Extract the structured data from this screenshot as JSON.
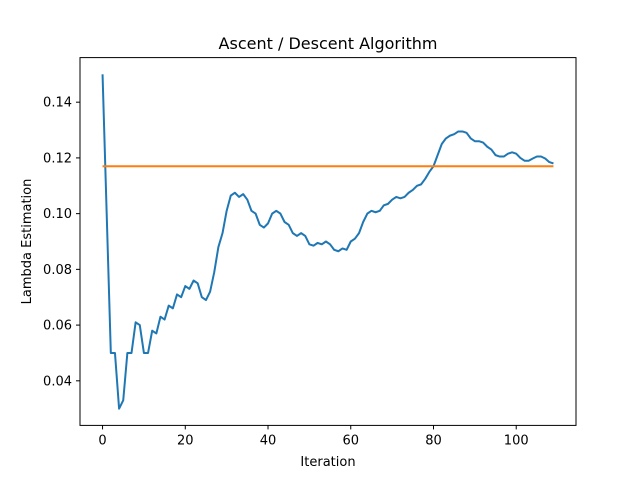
{
  "chart_data": {
    "type": "line",
    "title": "Ascent / Descent Algorithm",
    "xlabel": "Iteration",
    "ylabel": "Lambda Estimation",
    "xlim": [
      -5.45,
      114.45
    ],
    "ylim": [
      0.024,
      0.156
    ],
    "xticks": [
      0,
      20,
      40,
      60,
      80,
      100
    ],
    "yticks": [
      0.04,
      0.06,
      0.08,
      0.1,
      0.12,
      0.14
    ],
    "ytick_labels": [
      "0.04",
      "0.06",
      "0.08",
      "0.10",
      "0.12",
      "0.14"
    ],
    "grid": false,
    "legend": "none",
    "series": [
      {
        "color": "#1f77b4",
        "x": [
          0,
          1,
          2,
          3,
          4,
          5,
          6,
          7,
          8,
          9,
          10,
          11,
          12,
          13,
          14,
          15,
          16,
          17,
          18,
          19,
          20,
          21,
          22,
          23,
          24,
          25,
          26,
          27,
          28,
          29,
          30,
          31,
          32,
          33,
          34,
          35,
          36,
          37,
          38,
          39,
          40,
          41,
          42,
          43,
          44,
          45,
          46,
          47,
          48,
          49,
          50,
          51,
          52,
          53,
          54,
          55,
          56,
          57,
          58,
          59,
          60,
          61,
          62,
          63,
          64,
          65,
          66,
          67,
          68,
          69,
          70,
          71,
          72,
          73,
          74,
          75,
          76,
          77,
          78,
          79,
          80,
          81,
          82,
          83,
          84,
          85,
          86,
          87,
          88,
          89,
          90,
          91,
          92,
          93,
          94,
          95,
          96,
          97,
          98,
          99,
          100,
          101,
          102,
          103,
          104,
          105,
          106,
          107,
          108,
          109
        ],
        "y": [
          0.15,
          0.1,
          0.05,
          0.05,
          0.03,
          0.033,
          0.05,
          0.05,
          0.061,
          0.06,
          0.05,
          0.05,
          0.058,
          0.057,
          0.063,
          0.062,
          0.067,
          0.066,
          0.071,
          0.07,
          0.074,
          0.073,
          0.076,
          0.075,
          0.07,
          0.069,
          0.072,
          0.079,
          0.088,
          0.093,
          0.101,
          0.1065,
          0.1075,
          0.106,
          0.107,
          0.105,
          0.101,
          0.1,
          0.096,
          0.095,
          0.0965,
          0.1,
          0.101,
          0.1,
          0.097,
          0.096,
          0.093,
          0.092,
          0.093,
          0.092,
          0.089,
          0.0885,
          0.0895,
          0.089,
          0.09,
          0.089,
          0.087,
          0.0865,
          0.0875,
          0.087,
          0.09,
          0.091,
          0.093,
          0.097,
          0.1,
          0.101,
          0.1005,
          0.101,
          0.103,
          0.1035,
          0.105,
          0.106,
          0.1055,
          0.106,
          0.1075,
          0.1085,
          0.11,
          0.1105,
          0.1125,
          0.115,
          0.117,
          0.121,
          0.125,
          0.127,
          0.128,
          0.1285,
          0.1295,
          0.1295,
          0.129,
          0.127,
          0.126,
          0.126,
          0.1255,
          0.124,
          0.123,
          0.121,
          0.1205,
          0.1205,
          0.1215,
          0.122,
          0.1215,
          0.12,
          0.119,
          0.119,
          0.1198,
          0.1205,
          0.1205,
          0.1198,
          0.1185,
          0.118
        ]
      },
      {
        "color": "#ff7f0e",
        "x": [
          0,
          109
        ],
        "y": [
          0.117,
          0.117
        ]
      }
    ]
  }
}
